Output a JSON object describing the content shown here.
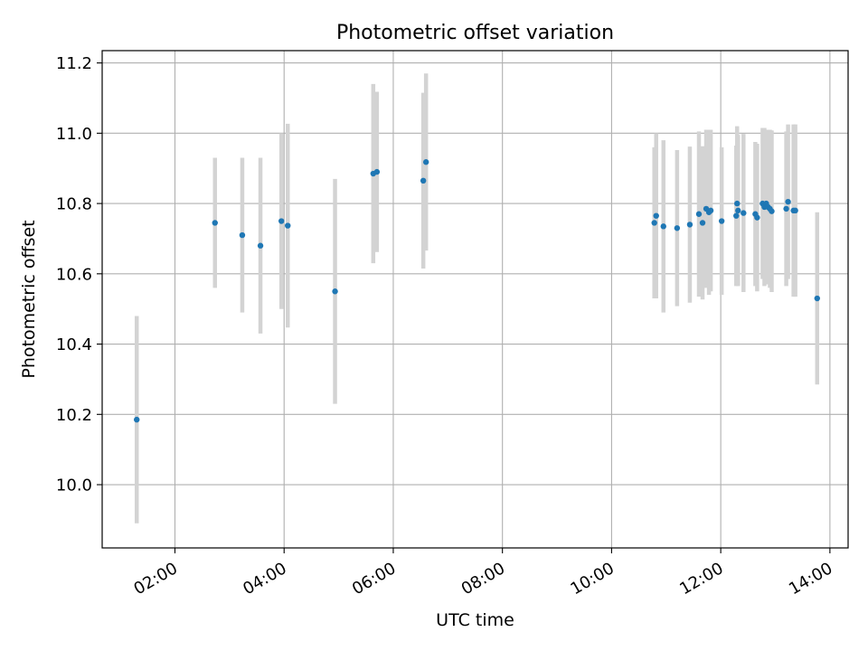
{
  "chart_data": {
    "type": "scatter",
    "title": "Photometric offset variation",
    "xlabel": "UTC time",
    "ylabel": "Photometric offset",
    "xlim": [
      "00:40",
      "14:20"
    ],
    "ylim": [
      9.82,
      11.235
    ],
    "x_ticks": [
      "02:00",
      "04:00",
      "06:00",
      "08:00",
      "10:00",
      "12:00",
      "14:00"
    ],
    "y_ticks": [
      "10.0",
      "10.2",
      "10.4",
      "10.6",
      "10.8",
      "11.0",
      "11.2"
    ],
    "grid": true,
    "colors": {
      "points": "#1f77b4",
      "error_bars": "#d3d3d3",
      "grid": "#b0b0b0"
    },
    "series": [
      {
        "points": [
          {
            "x": "01:18",
            "y": 10.185,
            "err": 0.295
          },
          {
            "x": "02:44",
            "y": 10.745,
            "err": 0.185
          },
          {
            "x": "03:14",
            "y": 10.71,
            "err": 0.22
          },
          {
            "x": "03:34",
            "y": 10.68,
            "err": 0.25
          },
          {
            "x": "03:57",
            "y": 10.75,
            "err": 0.25
          },
          {
            "x": "04:04",
            "y": 10.737,
            "err": 0.29
          },
          {
            "x": "04:56",
            "y": 10.55,
            "err": 0.32
          },
          {
            "x": "05:38",
            "y": 10.885,
            "err": 0.255
          },
          {
            "x": "05:42",
            "y": 10.89,
            "err": 0.228
          },
          {
            "x": "06:33",
            "y": 10.865,
            "err": 0.25
          },
          {
            "x": "06:36",
            "y": 10.918,
            "err": 0.252
          },
          {
            "x": "10:47",
            "y": 10.745,
            "err": 0.215
          },
          {
            "x": "10:49",
            "y": 10.765,
            "err": 0.235
          },
          {
            "x": "10:57",
            "y": 10.735,
            "err": 0.245
          },
          {
            "x": "11:12",
            "y": 10.73,
            "err": 0.222
          },
          {
            "x": "11:26",
            "y": 10.74,
            "err": 0.222
          },
          {
            "x": "11:36",
            "y": 10.77,
            "err": 0.235
          },
          {
            "x": "11:40",
            "y": 10.745,
            "err": 0.218
          },
          {
            "x": "11:44",
            "y": 10.785,
            "err": 0.225
          },
          {
            "x": "11:47",
            "y": 10.775,
            "err": 0.235
          },
          {
            "x": "11:49",
            "y": 10.78,
            "err": 0.23
          },
          {
            "x": "12:01",
            "y": 10.75,
            "err": 0.21
          },
          {
            "x": "12:17",
            "y": 10.765,
            "err": 0.2
          },
          {
            "x": "12:18",
            "y": 10.8,
            "err": 0.22
          },
          {
            "x": "12:19",
            "y": 10.78,
            "err": 0.215
          },
          {
            "x": "12:25",
            "y": 10.773,
            "err": 0.225
          },
          {
            "x": "12:38",
            "y": 10.77,
            "err": 0.205
          },
          {
            "x": "12:40",
            "y": 10.76,
            "err": 0.21
          },
          {
            "x": "12:46",
            "y": 10.8,
            "err": 0.215
          },
          {
            "x": "12:48",
            "y": 10.79,
            "err": 0.225
          },
          {
            "x": "12:50",
            "y": 10.8,
            "err": 0.21
          },
          {
            "x": "12:52",
            "y": 10.79,
            "err": 0.22
          },
          {
            "x": "12:54",
            "y": 10.785,
            "err": 0.225
          },
          {
            "x": "12:56",
            "y": 10.778,
            "err": 0.23
          },
          {
            "x": "13:12",
            "y": 10.785,
            "err": 0.22
          },
          {
            "x": "13:14",
            "y": 10.805,
            "err": 0.22
          },
          {
            "x": "13:20",
            "y": 10.78,
            "err": 0.245
          },
          {
            "x": "13:22",
            "y": 10.78,
            "err": 0.245
          },
          {
            "x": "13:46",
            "y": 10.53,
            "err": 0.245
          }
        ]
      }
    ]
  }
}
